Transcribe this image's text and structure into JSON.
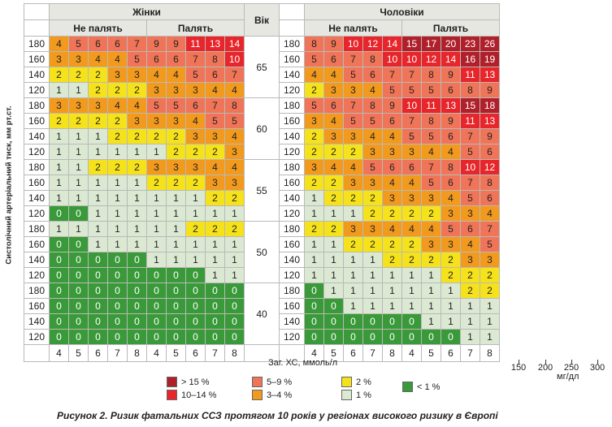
{
  "header": {
    "women": "Жінки",
    "men": "Чоловіки",
    "age": "Вік",
    "nonsmoking": "Не палять",
    "smoking": "Палять"
  },
  "y_axis_label": "Систолічний артеріальний тиск, мм рт.ст.",
  "x_axis_label": "Заг. ХС, ммоль/л",
  "cholesterol_mmol": [
    "4",
    "5",
    "6",
    "7",
    "8"
  ],
  "cholesterol_mg": {
    "ticks": [
      "150",
      "200",
      "250",
      "300"
    ],
    "unit": "мг/дл"
  },
  "bp_levels": [
    "180",
    "160",
    "140",
    "120"
  ],
  "age_groups": [
    {
      "age": "65",
      "women": {
        "nonsmoking": [
          [
            4,
            5,
            6,
            6,
            7
          ],
          [
            3,
            3,
            4,
            4,
            5
          ],
          [
            2,
            2,
            2,
            3,
            3
          ],
          [
            1,
            1,
            2,
            2,
            2
          ]
        ],
        "smoking": [
          [
            9,
            9,
            11,
            13,
            14
          ],
          [
            6,
            6,
            7,
            8,
            10
          ],
          [
            4,
            4,
            5,
            6,
            7
          ],
          [
            3,
            3,
            3,
            4,
            4
          ]
        ]
      },
      "men": {
        "nonsmoking": [
          [
            8,
            9,
            10,
            12,
            14
          ],
          [
            5,
            6,
            7,
            8,
            10
          ],
          [
            4,
            4,
            5,
            6,
            7
          ],
          [
            2,
            3,
            3,
            4,
            5
          ]
        ],
        "smoking": [
          [
            15,
            17,
            20,
            23,
            26
          ],
          [
            10,
            12,
            14,
            16,
            19
          ],
          [
            7,
            8,
            9,
            11,
            13
          ],
          [
            5,
            5,
            6,
            8,
            9
          ]
        ]
      }
    },
    {
      "age": "60",
      "women": {
        "nonsmoking": [
          [
            3,
            3,
            3,
            4,
            4
          ],
          [
            2,
            2,
            2,
            2,
            3
          ],
          [
            1,
            1,
            1,
            2,
            2
          ],
          [
            1,
            1,
            1,
            1,
            1
          ]
        ],
        "smoking": [
          [
            5,
            5,
            6,
            7,
            8
          ],
          [
            3,
            3,
            4,
            5,
            5
          ],
          [
            2,
            2,
            3,
            3,
            4
          ],
          [
            1,
            2,
            2,
            2,
            3
          ]
        ]
      },
      "men": {
        "nonsmoking": [
          [
            5,
            6,
            7,
            8,
            9
          ],
          [
            3,
            4,
            5,
            5,
            6
          ],
          [
            2,
            3,
            3,
            4,
            4
          ],
          [
            2,
            2,
            2,
            3,
            3
          ]
        ],
        "smoking": [
          [
            10,
            11,
            13,
            15,
            18
          ],
          [
            7,
            8,
            9,
            11,
            13
          ],
          [
            5,
            5,
            6,
            7,
            9
          ],
          [
            3,
            4,
            4,
            5,
            6
          ]
        ]
      }
    },
    {
      "age": "55",
      "women": {
        "nonsmoking": [
          [
            1,
            1,
            2,
            2,
            2
          ],
          [
            1,
            1,
            1,
            1,
            1
          ],
          [
            1,
            1,
            1,
            1,
            1
          ],
          [
            0,
            0,
            1,
            1,
            1
          ]
        ],
        "smoking": [
          [
            3,
            3,
            3,
            4,
            4
          ],
          [
            2,
            2,
            2,
            3,
            3
          ],
          [
            1,
            1,
            1,
            2,
            2
          ],
          [
            1,
            1,
            1,
            1,
            1
          ]
        ]
      },
      "men": {
        "nonsmoking": [
          [
            3,
            4,
            4,
            5,
            6
          ],
          [
            2,
            2,
            3,
            3,
            4
          ],
          [
            1,
            2,
            2,
            2,
            3
          ],
          [
            1,
            1,
            1,
            2,
            2
          ]
        ],
        "smoking": [
          [
            6,
            7,
            8,
            10,
            12
          ],
          [
            4,
            5,
            6,
            7,
            8
          ],
          [
            3,
            3,
            4,
            5,
            6
          ],
          [
            2,
            2,
            3,
            3,
            4
          ]
        ]
      }
    },
    {
      "age": "50",
      "women": {
        "nonsmoking": [
          [
            1,
            1,
            1,
            1,
            1
          ],
          [
            0,
            0,
            1,
            1,
            1
          ],
          [
            0,
            0,
            0,
            0,
            0
          ],
          [
            0,
            0,
            0,
            0,
            0
          ]
        ],
        "smoking": [
          [
            1,
            1,
            2,
            2,
            2
          ],
          [
            1,
            1,
            1,
            1,
            1
          ],
          [
            1,
            1,
            1,
            1,
            1
          ],
          [
            0,
            0,
            0,
            1,
            1
          ]
        ]
      },
      "men": {
        "nonsmoking": [
          [
            2,
            2,
            3,
            3,
            4
          ],
          [
            1,
            1,
            2,
            2,
            2
          ],
          [
            1,
            1,
            1,
            1,
            2
          ],
          [
            1,
            1,
            1,
            1,
            1
          ]
        ],
        "smoking": [
          [
            4,
            4,
            5,
            6,
            7
          ],
          [
            2,
            3,
            3,
            4,
            5
          ],
          [
            2,
            2,
            2,
            3,
            3
          ],
          [
            1,
            1,
            2,
            2,
            2
          ]
        ]
      }
    },
    {
      "age": "40",
      "women": {
        "nonsmoking": [
          [
            0,
            0,
            0,
            0,
            0
          ],
          [
            0,
            0,
            0,
            0,
            0
          ],
          [
            0,
            0,
            0,
            0,
            0
          ],
          [
            0,
            0,
            0,
            0,
            0
          ]
        ],
        "smoking": [
          [
            0,
            0,
            0,
            0,
            0
          ],
          [
            0,
            0,
            0,
            0,
            0
          ],
          [
            0,
            0,
            0,
            0,
            0
          ],
          [
            0,
            0,
            0,
            0,
            0
          ]
        ]
      },
      "men": {
        "nonsmoking": [
          [
            0,
            1,
            1,
            1,
            1
          ],
          [
            0,
            0,
            1,
            1,
            1
          ],
          [
            0,
            0,
            0,
            0,
            0
          ],
          [
            0,
            0,
            0,
            0,
            0
          ]
        ],
        "smoking": [
          [
            1,
            1,
            1,
            2,
            2
          ],
          [
            1,
            1,
            1,
            1,
            1
          ],
          [
            0,
            1,
            1,
            1,
            1
          ],
          [
            0,
            0,
            0,
            1,
            1
          ]
        ]
      }
    }
  ],
  "legend": [
    {
      "label": "> 15 %",
      "color": "#b0202a"
    },
    {
      "label": "10–14 %",
      "color": "#e8252a"
    },
    {
      "label": "5–9 %",
      "color": "#f07558"
    },
    {
      "label": "3–4 %",
      "color": "#f29a1e"
    },
    {
      "label": "2 %",
      "color": "#f5e21a"
    },
    {
      "label": "1 %",
      "color": "#dbe8d2"
    },
    {
      "label": "< 1 %",
      "color": "#3a9a3a"
    }
  ],
  "caption": "Рисунок 2. Ризик фатальних ССЗ протягом 10 років у регіонах високого ризику в Європі"
}
